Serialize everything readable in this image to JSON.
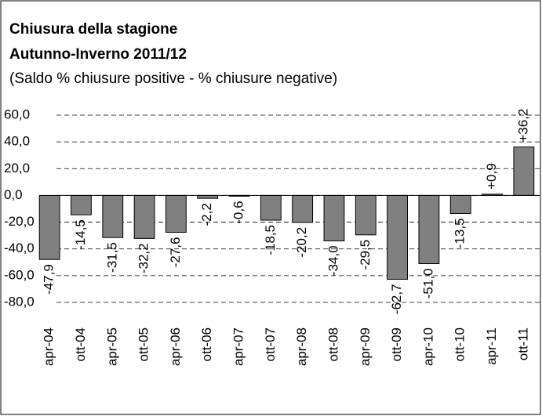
{
  "chart_data": {
    "type": "bar",
    "title": "Chiusura della stagione",
    "title_line2": "Autunno-Inverno 2011/12",
    "subtitle": "(Saldo % chiusure positive - % chiusure negative)",
    "categories": [
      "apr-04",
      "ott-04",
      "apr-05",
      "ott-05",
      "apr-06",
      "ott-06",
      "apr-07",
      "ott-07",
      "apr-08",
      "ott-08",
      "apr-09",
      "ott-09",
      "apr-10",
      "ott-10",
      "apr-11",
      "ott-11"
    ],
    "values": [
      -47.9,
      -14.5,
      -31.5,
      -32.2,
      -27.6,
      -2.2,
      -0.6,
      -18.5,
      -20.2,
      -34.0,
      -29.5,
      -62.7,
      -51.0,
      -13.5,
      0.9,
      36.2
    ],
    "value_labels": [
      "-47,9",
      "-14,5",
      "-31,5",
      "-32,2",
      "-27,6",
      "-2,2",
      "-0,6",
      "-18,5",
      "-20,2",
      "-34,0",
      "-29,5",
      "-62,7",
      "-51,0",
      "-13,5",
      "+0,9",
      "+36,2"
    ],
    "color": "#808080",
    "ylim": [
      -80,
      60
    ],
    "yticks": [
      {
        "value": 60,
        "label": "60,0"
      },
      {
        "value": 40,
        "label": "40,0"
      },
      {
        "value": 20,
        "label": "20,0"
      },
      {
        "value": 0,
        "label": "0,0"
      },
      {
        "value": -20,
        "label": "-20,0"
      },
      {
        "value": -40,
        "label": "-40,0"
      },
      {
        "value": -60,
        "label": "-60,0"
      },
      {
        "value": -80,
        "label": "-80,0"
      }
    ],
    "grid": true
  }
}
